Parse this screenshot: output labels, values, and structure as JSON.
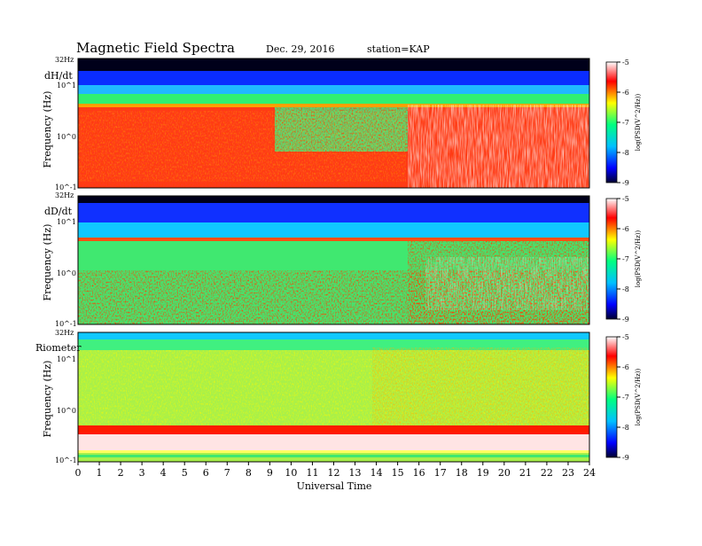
{
  "header": {
    "title": "Magnetic Field Spectra",
    "date": "Dec. 29, 2016",
    "station": "station=KAP"
  },
  "chart_data": {
    "type": "heatmap",
    "xlabel": "Universal Time",
    "x_ticks": [
      "0",
      "1",
      "2",
      "3",
      "4",
      "5",
      "6",
      "7",
      "8",
      "9",
      "10",
      "11",
      "12",
      "13",
      "14",
      "15",
      "16",
      "17",
      "18",
      "19",
      "20",
      "21",
      "22",
      "23",
      "24"
    ],
    "xlim": [
      0,
      24
    ],
    "colorbar": {
      "label": "log(PSD(V^2/Hz))",
      "range": [
        -9,
        -5
      ],
      "ticks": [
        "-5",
        "-6",
        "-7",
        "-8",
        "-9"
      ],
      "colors": [
        "#000030",
        "#0000ff",
        "#00c0ff",
        "#00ff80",
        "#ffff00",
        "#ff0000",
        "#ffffff"
      ]
    },
    "panels": [
      {
        "label": "dH/dt",
        "ylabel": "Frequency (Hz)",
        "y_ticks": [
          "32Hz",
          "10^1",
          "10^0",
          "10^-1"
        ],
        "scale": "log",
        "ylim": [
          0.1,
          32
        ],
        "features": "noise band near 4 Hz; strong broadband activity after 15.4 UT"
      },
      {
        "label": "dD/dt",
        "ylabel": "Frequency (Hz)",
        "y_ticks": [
          "32Hz",
          "10^1",
          "10^0",
          "10^-1"
        ],
        "scale": "log",
        "ylim": [
          0.1,
          32
        ],
        "features": "line near 4 Hz; enhanced activity after 15.6 UT"
      },
      {
        "label": "Riometer",
        "ylabel": "Frequency (Hz)",
        "y_ticks": [
          "32Hz",
          "10^1",
          "10^0",
          "10^-1"
        ],
        "scale": "log",
        "ylim": [
          0.1,
          32
        ],
        "features": "broad yellow-green spectrum with orange enhancement after 15 UT; red band near 0.35 Hz"
      }
    ]
  }
}
